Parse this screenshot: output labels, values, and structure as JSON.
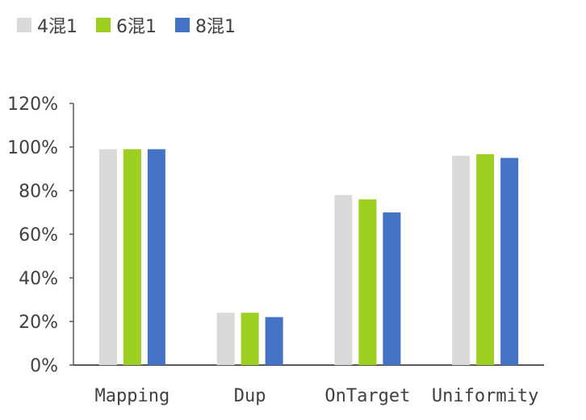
{
  "chart_data": {
    "type": "bar",
    "categories": [
      "Mapping",
      "Dup",
      "OnTarget",
      "Uniformity"
    ],
    "series": [
      {
        "name": "4混1",
        "color": "#d9d9d9",
        "values": [
          99,
          24,
          78,
          96
        ]
      },
      {
        "name": "6混1",
        "color": "#9dce22",
        "values": [
          99,
          24,
          76,
          96.7
        ]
      },
      {
        "name": "8混1",
        "color": "#4472c4",
        "values": [
          99,
          22,
          70,
          95
        ]
      }
    ],
    "ylim": [
      0,
      120
    ],
    "yticks": [
      "0%",
      "20%",
      "40%",
      "60%",
      "80%",
      "100%",
      "120%"
    ],
    "legend": "top-left",
    "grid": false
  }
}
